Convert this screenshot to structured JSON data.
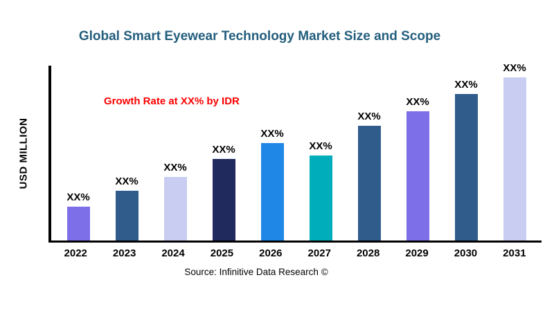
{
  "chart_data": {
    "type": "bar",
    "title": "Global Smart Eyewear Technology Market Size and Scope",
    "categories": [
      "2022",
      "2023",
      "2024",
      "2025",
      "2026",
      "2027",
      "2028",
      "2029",
      "2030",
      "2031"
    ],
    "values": [
      19,
      28,
      36,
      46,
      55,
      48,
      65,
      73,
      83,
      92
    ],
    "bar_labels": [
      "XX%",
      "XX%",
      "XX%",
      "XX%",
      "XX%",
      "XX%",
      "XX%",
      "XX%",
      "XX%",
      "XX%"
    ],
    "bar_colors": [
      "#7D6FE8",
      "#2F5C8A",
      "#C9CDF1",
      "#202A5C",
      "#1F87E5",
      "#00ADBB",
      "#2F5C8A",
      "#7D6FE8",
      "#2F5C8A",
      "#C9CDF1"
    ],
    "xlabel": "",
    "ylabel": "USD MILLION",
    "ylim": [
      0,
      100
    ],
    "grid": false,
    "legend": "none",
    "annotation": {
      "text": "Growth Rate at XX% by IDR",
      "color": "#FF0000"
    },
    "source": "Source: Infinitive Data Research ©"
  },
  "colors": {
    "title": "#235E7D",
    "axis": "#000000",
    "background": "#FFFFFF"
  }
}
